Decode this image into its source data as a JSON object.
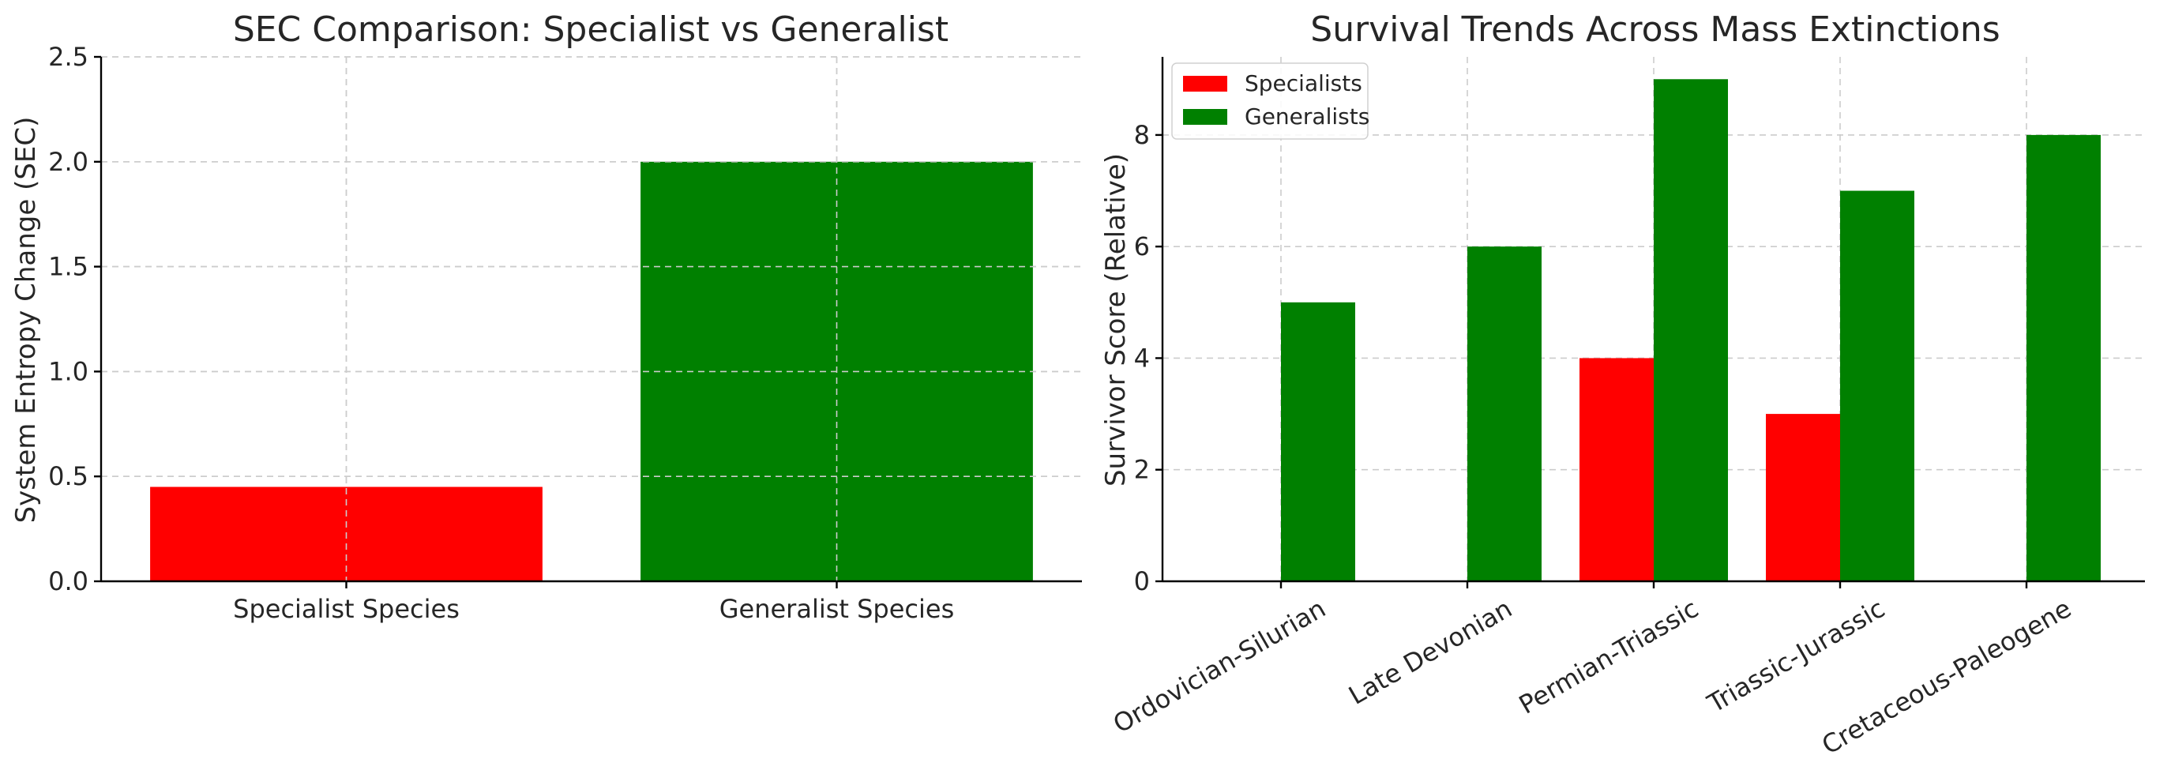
{
  "chart_data": [
    {
      "type": "bar",
      "title": "SEC Comparison: Specialist vs Generalist",
      "xlabel": "",
      "ylabel": "System Entropy Change (SEC)",
      "categories": [
        "Specialist Species",
        "Generalist Species"
      ],
      "values": [
        0.45,
        2.0
      ],
      "colors": [
        "#ff0000",
        "#008000"
      ],
      "ylim": [
        0,
        2.5
      ],
      "yticks": [
        0.0,
        0.5,
        1.0,
        1.5,
        2.0,
        2.5
      ],
      "ytick_labels": [
        "0.0",
        "0.5",
        "1.0",
        "1.5",
        "2.0",
        "2.5"
      ],
      "grid": true
    },
    {
      "type": "bar",
      "title": "Survival Trends Across Mass Extinctions",
      "xlabel": "",
      "ylabel": "Survivor Score (Relative)",
      "categories": [
        "Ordovician-Silurian",
        "Late Devonian",
        "Permian-Triassic",
        "Triassic-Jurassic",
        "Cretaceous-Paleogene"
      ],
      "series": [
        {
          "name": "Specialists",
          "color": "#ff0000",
          "values": [
            0,
            0,
            4,
            3,
            0
          ]
        },
        {
          "name": "Generalists",
          "color": "#008000",
          "values": [
            5,
            6,
            9,
            7,
            8
          ]
        }
      ],
      "ylim": [
        0,
        9.4
      ],
      "yticks": [
        0,
        2,
        4,
        6,
        8
      ],
      "ytick_labels": [
        "0",
        "2",
        "4",
        "6",
        "8"
      ],
      "legend_position": "top-left",
      "grid": true
    }
  ]
}
